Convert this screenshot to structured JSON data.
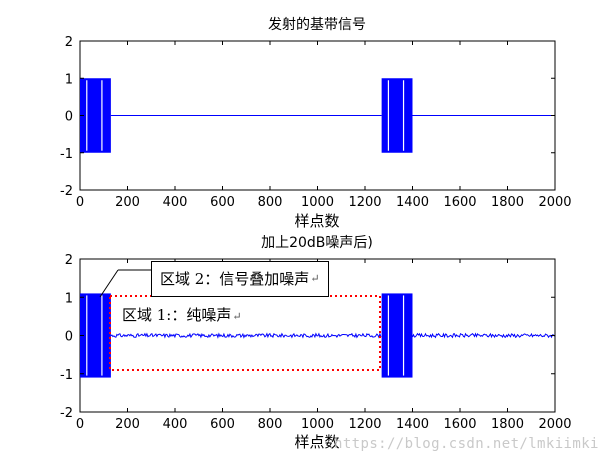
{
  "colors": {
    "signal": "#0000ff",
    "region1_border": "#ff0000",
    "axes": "#000000"
  },
  "chart_data": [
    {
      "type": "line",
      "title": "发射的基带信号",
      "xlabel": "样点数",
      "ylabel": "",
      "xlim": [
        0,
        2000
      ],
      "ylim": [
        -2,
        2
      ],
      "xticks": [
        0,
        200,
        400,
        600,
        800,
        1000,
        1200,
        1400,
        1600,
        1800,
        2000
      ],
      "yticks": [
        -2,
        -1,
        0,
        1,
        2
      ],
      "series": [
        {
          "segments": [
            {
              "x_start": 0,
              "x_end": 130,
              "kind": "bipolar_data",
              "y_values": [
                -1,
                1
              ]
            },
            {
              "x_start": 130,
              "x_end": 1270,
              "kind": "zero",
              "y_values": [
                0
              ]
            },
            {
              "x_start": 1270,
              "x_end": 1400,
              "kind": "bipolar_data",
              "y_values": [
                -1,
                1
              ]
            },
            {
              "x_start": 1400,
              "x_end": 2000,
              "kind": "zero",
              "y_values": [
                0
              ]
            }
          ]
        }
      ]
    },
    {
      "type": "line",
      "title": "加上20dB噪声后)",
      "xlabel": "样点数",
      "ylabel": "",
      "xlim": [
        0,
        2000
      ],
      "ylim": [
        -2,
        2
      ],
      "xticks": [
        0,
        200,
        400,
        600,
        800,
        1000,
        1200,
        1400,
        1600,
        1800,
        2000
      ],
      "yticks": [
        -2,
        -1,
        0,
        1,
        2
      ],
      "snr_db": 20,
      "series": [
        {
          "segments": [
            {
              "x_start": 0,
              "x_end": 130,
              "kind": "bipolar_data_plus_noise",
              "y_range": [
                -1.1,
                1.1
              ]
            },
            {
              "x_start": 130,
              "x_end": 1270,
              "kind": "noise_only",
              "y_range": [
                -0.08,
                0.08
              ]
            },
            {
              "x_start": 1270,
              "x_end": 1400,
              "kind": "bipolar_data_plus_noise",
              "y_range": [
                -1.1,
                1.1
              ]
            },
            {
              "x_start": 1400,
              "x_end": 2000,
              "kind": "noise_only",
              "y_range": [
                -0.08,
                0.08
              ]
            }
          ]
        }
      ],
      "annotations": [
        {
          "label": "区域 2：信号叠加噪声",
          "target": "signal_plus_noise"
        },
        {
          "label": "区域 1:：纯噪声",
          "target": "noise_only",
          "region_x": [
            130,
            1270
          ],
          "region_y": [
            -0.9,
            1.05
          ]
        }
      ]
    }
  ],
  "watermark": "https://blog.csdn.net/lmkiimki"
}
